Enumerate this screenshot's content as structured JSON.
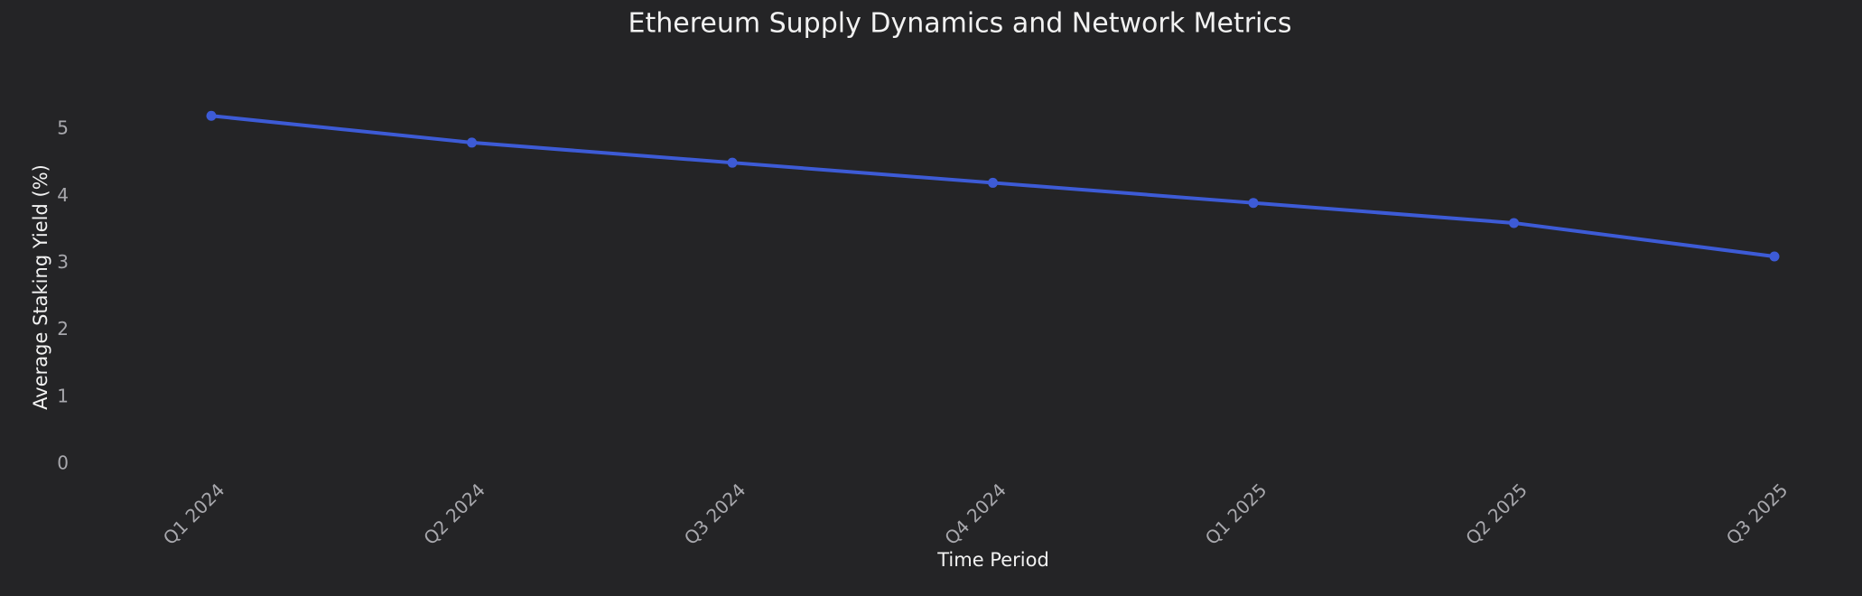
{
  "chart_data": {
    "type": "line",
    "title": "Ethereum Supply Dynamics and Network Metrics",
    "x_label": "Time Period",
    "y_label": "Average Staking Yield (%)",
    "categories": [
      "Q1 2024",
      "Q2 2024",
      "Q3 2024",
      "Q4 2024",
      "Q1 2025",
      "Q2 2025",
      "Q3 2025"
    ],
    "series": [
      {
        "name": "Average Staking Yield (%)",
        "color": "#3d5bd6",
        "values": [
          5.2,
          4.8,
          4.5,
          4.2,
          3.9,
          3.6,
          3.1
        ]
      }
    ],
    "ylim": [
      0,
      5.5
    ],
    "yticks": [
      0,
      1,
      2,
      3,
      4,
      5
    ],
    "grid": false
  }
}
